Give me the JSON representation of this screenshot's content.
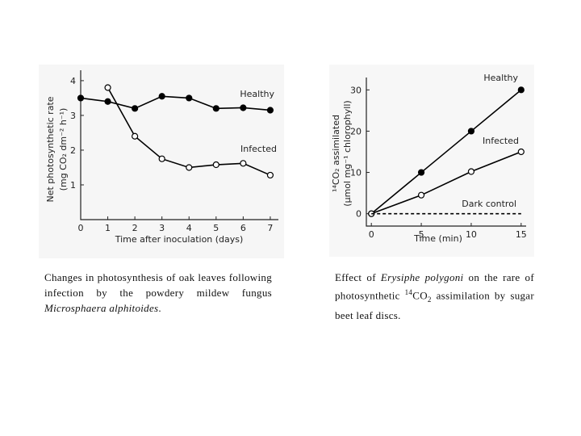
{
  "chart_data": [
    {
      "type": "line",
      "ylabel": [
        "Net photosynthetic rate",
        "(mg CO₂ dm⁻² h⁻¹)"
      ],
      "xlabel": "Time after inoculation (days)",
      "x": [
        0,
        1,
        2,
        3,
        4,
        5,
        6,
        7
      ],
      "xlim": [
        0,
        7.3
      ],
      "xticks": [
        0,
        1,
        2,
        3,
        4,
        5,
        6,
        7
      ],
      "ylim": [
        0,
        4.3
      ],
      "yticks": [
        1,
        2,
        3,
        4
      ],
      "series": [
        {
          "name": "Healthy",
          "color": "#000000",
          "marker": "filled",
          "values": [
            3.5,
            3.4,
            3.2,
            3.55,
            3.5,
            3.2,
            3.22,
            3.15
          ]
        },
        {
          "name": "Infected",
          "color": "#000000",
          "marker": "open",
          "values": [
            null,
            3.8,
            2.4,
            1.75,
            1.5,
            1.58,
            1.62,
            1.28
          ]
        }
      ],
      "caption": [
        "Changes in photosynthesis of oak leaves following infection by the powdery mildew fungus ",
        "Microsphaera alphitoides",
        "."
      ]
    },
    {
      "type": "line",
      "ylabel": [
        "¹⁴CO₂ assimilated",
        "(µmol mg⁻¹ chlorophyll)"
      ],
      "xlabel": "Time (min)",
      "x": [
        0,
        5,
        10,
        15
      ],
      "xlim": [
        -0.5,
        15.5
      ],
      "xticks": [
        0,
        5,
        10,
        15
      ],
      "ylim": [
        -3,
        33
      ],
      "yticks": [
        0,
        10,
        20,
        30
      ],
      "series": [
        {
          "name": "Healthy",
          "color": "#000000",
          "marker": "filled",
          "values": [
            0,
            10,
            20,
            30
          ]
        },
        {
          "name": "Infected",
          "color": "#000000",
          "marker": "open",
          "values": [
            0,
            4.5,
            10.2,
            15
          ]
        },
        {
          "name": "Dark control",
          "color": "#000000",
          "marker": "none",
          "dash": true,
          "values": [
            0,
            0,
            0,
            0
          ]
        }
      ],
      "caption": [
        "Effect of ",
        "Erysiphe polygoni",
        " on the rare of photosynthetic ",
        "14",
        "CO",
        "2",
        " assimilation by sugar beet leaf discs."
      ]
    }
  ]
}
